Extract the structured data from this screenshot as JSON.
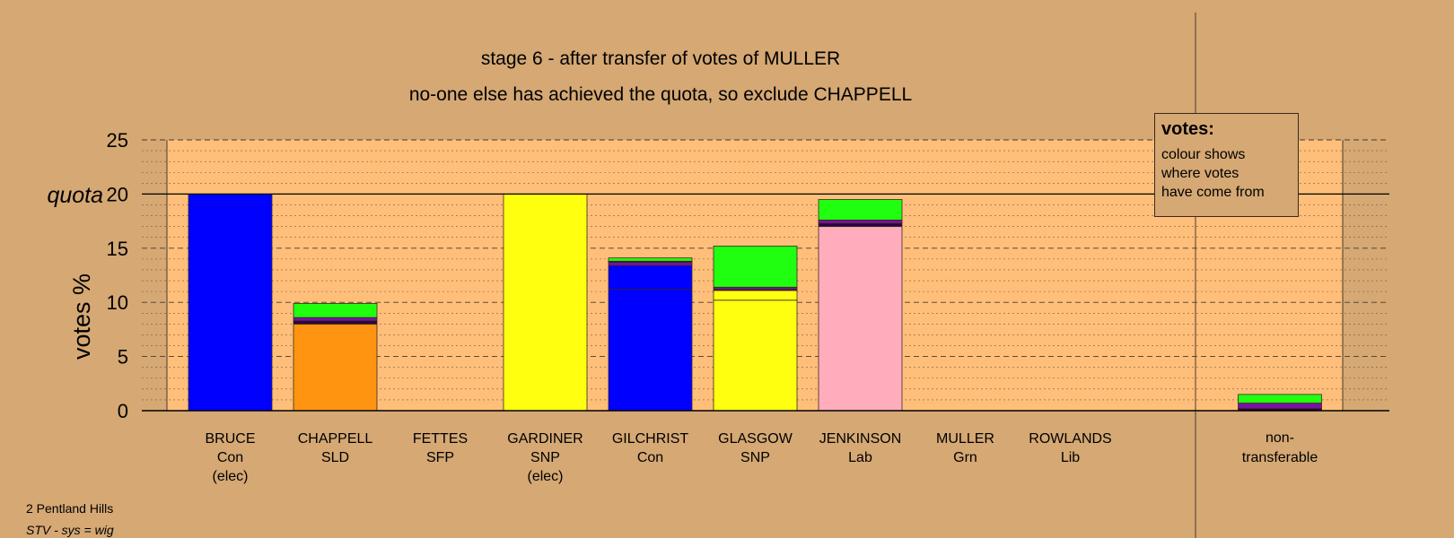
{
  "chart_data": {
    "type": "bar",
    "stacked": true,
    "title": "stage 6 - after transfer of votes of MULLER",
    "subtitle": "no-one else has achieved the quota, so exclude CHAPPELL",
    "ylabel": "votes %",
    "ylim": [
      0,
      25
    ],
    "yticks": [
      0,
      5,
      10,
      15,
      20,
      25
    ],
    "quota": 20,
    "quota_label": "quota",
    "grid": true,
    "colors": {
      "Con": "#0000ff",
      "SLD": "#ff9410",
      "SNP": "#ffff10",
      "Lab": "#ffadbd",
      "Grn": "#21ff10",
      "Lib": "#29004a",
      "SFP": "#7b10a5"
    },
    "categories": [
      {
        "name": "BRUCE",
        "party": "Con",
        "note": "(elec)",
        "segments": [
          {
            "from": "Con",
            "value": 20.0
          }
        ]
      },
      {
        "name": "CHAPPELL",
        "party": "SLD",
        "note": "",
        "segments": [
          {
            "from": "SLD",
            "value": 8.0
          },
          {
            "from": "Lib",
            "value": 0.3
          },
          {
            "from": "SFP",
            "value": 0.3
          },
          {
            "from": "Grn",
            "value": 1.3
          }
        ]
      },
      {
        "name": "FETTES",
        "party": "SFP",
        "note": "",
        "segments": []
      },
      {
        "name": "GARDINER",
        "party": "SNP",
        "note": "(elec)",
        "segments": [
          {
            "from": "SNP",
            "value": 20.0
          }
        ]
      },
      {
        "name": "GILCHRIST",
        "party": "Con",
        "note": "",
        "segments": [
          {
            "from": "Con",
            "value": 11.2
          },
          {
            "from": "Con",
            "value": 2.2
          },
          {
            "from": "SFP",
            "value": 0.3
          },
          {
            "from": "Lib",
            "value": 0.1
          },
          {
            "from": "Grn",
            "value": 0.3
          }
        ]
      },
      {
        "name": "GLASGOW",
        "party": "SNP",
        "note": "",
        "segments": [
          {
            "from": "SNP",
            "value": 10.2
          },
          {
            "from": "SNP",
            "value": 0.9
          },
          {
            "from": "Lib",
            "value": 0.1
          },
          {
            "from": "SFP",
            "value": 0.2
          },
          {
            "from": "Grn",
            "value": 3.8
          }
        ]
      },
      {
        "name": "JENKINSON",
        "party": "Lab",
        "note": "",
        "segments": [
          {
            "from": "Lab",
            "value": 17.0
          },
          {
            "from": "Lib",
            "value": 0.3
          },
          {
            "from": "SFP",
            "value": 0.3
          },
          {
            "from": "Grn",
            "value": 1.9
          }
        ]
      },
      {
        "name": "MULLER",
        "party": "Grn",
        "note": "",
        "segments": []
      },
      {
        "name": "ROWLANDS",
        "party": "Lib",
        "note": "",
        "segments": []
      }
    ],
    "nontransferable": {
      "label1": "non-",
      "label2": "transferable",
      "segments": [
        {
          "from": "Lib",
          "value": 0.2
        },
        {
          "from": "SFP",
          "value": 0.5
        },
        {
          "from": "Grn",
          "value": 0.8
        }
      ]
    },
    "legend": {
      "title": "votes:",
      "lines": [
        "colour shows",
        "where votes",
        "have come from"
      ],
      "position": "top-right"
    }
  },
  "footer": {
    "line1": "2 Pentland Hills",
    "line2": "STV - sys = wig"
  }
}
